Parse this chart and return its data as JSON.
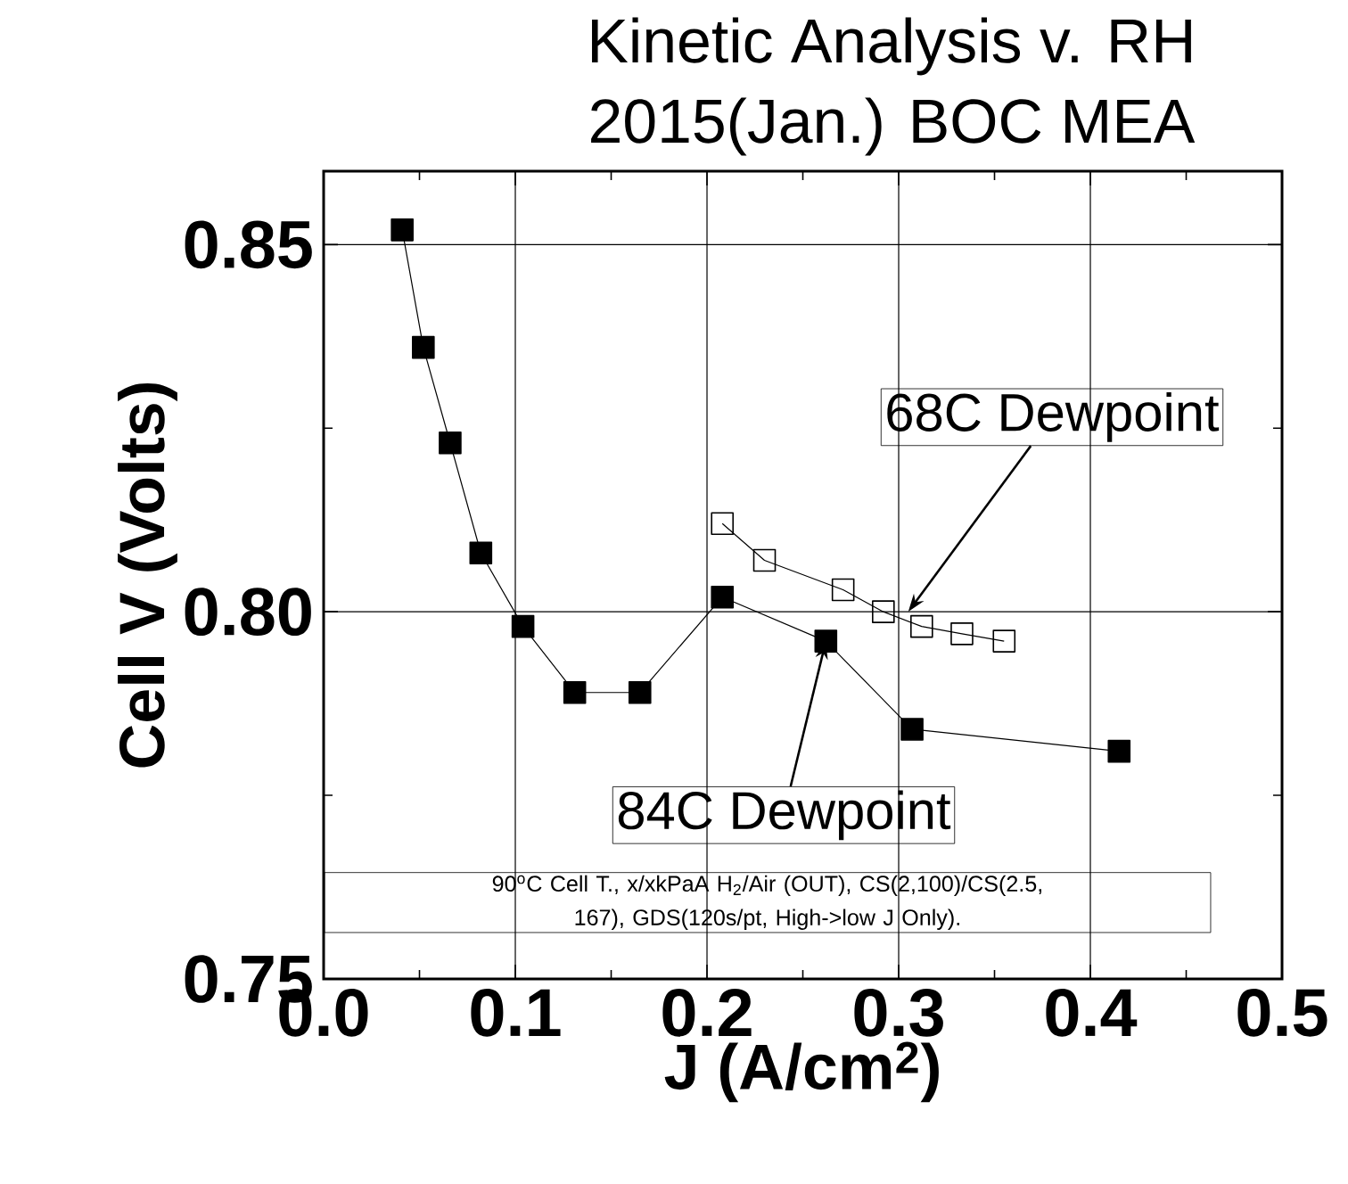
{
  "chart_data": {
    "type": "line",
    "title": "Kinetic Analysis v. RH",
    "subtitle": "2015(Jan.) BOC MEA",
    "xlabel": "J (A/cm$^{2}$)",
    "ylabel": "Cell V (Volts)",
    "xlim": [
      0,
      0.5
    ],
    "ylim": [
      0.75,
      0.86
    ],
    "xticks": [
      {
        "value": 0,
        "label": "0.0"
      },
      0.1,
      0.2,
      0.3,
      0.4,
      0.5
    ],
    "yticks": [
      0.75,
      {
        "value": 0.8,
        "label": "0.80"
      },
      0.85
    ],
    "grid": true,
    "marker": "square",
    "line_style": "solid",
    "series": [
      {
        "color": "#000000",
        "x": [
          0.041,
          0.052,
          0.066,
          0.082,
          0.104,
          0.131,
          0.165,
          0.208,
          0.262,
          0.307,
          0.415
        ],
        "values": [
          0.852,
          0.836,
          0.823,
          0.808,
          0.798,
          0.789,
          0.789,
          0.802,
          0.796,
          0.784,
          0.781
        ]
      },
      {
        "color": "#000000",
        "x": [
          0.208,
          0.23,
          0.271,
          0.292,
          0.312,
          0.333,
          0.355
        ],
        "values": [
          0.812,
          0.807,
          0.803,
          0.8,
          0.798,
          0.797,
          0.796
        ]
      }
    ],
    "annotations": [
      {
        "text": "68C Dewpoint",
        "x": 0.305,
        "y": 0.8
      },
      {
        "text": "84C Dewpoint",
        "x": 0.262,
        "y": 0.796
      },
      "90$^{o}$C Cell T., x/xkPaA H$_{2}$/Air (OUT), CS(2,100)/CS(2.5, 167), GDS(120s/pt, High->low J Only)."
    ]
  }
}
